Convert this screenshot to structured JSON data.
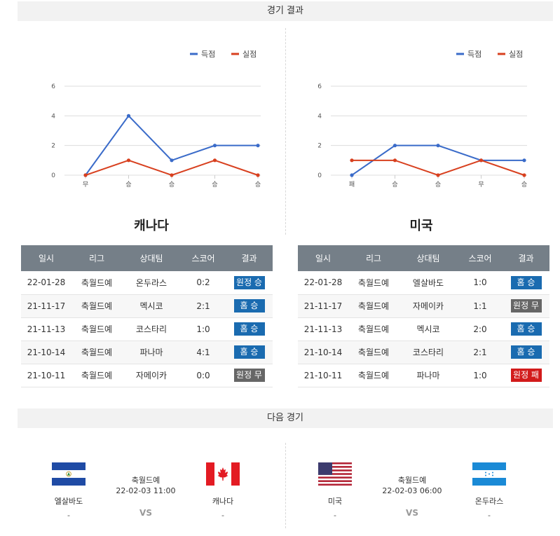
{
  "sections": {
    "results_title": "경기 결과",
    "next_title": "다음 경기"
  },
  "colors": {
    "goals": "#3a6bc9",
    "conceded": "#d8401f",
    "win": "#1a6bb0",
    "draw": "#666666",
    "loss": "#d21b1b",
    "header_bg": "#757f88"
  },
  "legend": {
    "goals": "득점",
    "conceded": "실점"
  },
  "chart_data": [
    {
      "type": "line",
      "categories": [
        "무",
        "승",
        "승",
        "승",
        "승"
      ],
      "series": [
        {
          "name": "득점",
          "values": [
            0,
            4,
            1,
            2,
            2
          ]
        },
        {
          "name": "실점",
          "values": [
            0,
            1,
            0,
            1,
            0
          ]
        }
      ],
      "yticks": [
        0,
        2,
        4,
        6
      ],
      "ylim": [
        0,
        6
      ],
      "grid": true,
      "legend_position": "top-right"
    },
    {
      "type": "line",
      "categories": [
        "패",
        "승",
        "승",
        "무",
        "승"
      ],
      "series": [
        {
          "name": "득점",
          "values": [
            0,
            2,
            2,
            1,
            1
          ]
        },
        {
          "name": "실점",
          "values": [
            1,
            1,
            0,
            1,
            0
          ]
        }
      ],
      "yticks": [
        0,
        2,
        4,
        6
      ],
      "ylim": [
        0,
        6
      ],
      "grid": true,
      "legend_position": "top-right"
    }
  ],
  "teams": {
    "canada": {
      "name": "캐나다"
    },
    "usa": {
      "name": "미국"
    }
  },
  "table_headers": [
    "일시",
    "리그",
    "상대팀",
    "스코어",
    "결과"
  ],
  "canada_results": [
    {
      "date": "22-01-28",
      "league": "축월드예",
      "opponent": "온두라스",
      "score": "0:2",
      "result": "원정 승",
      "type": "win"
    },
    {
      "date": "21-11-17",
      "league": "축월드예",
      "opponent": "멕시코",
      "score": "2:1",
      "result": "홈 승",
      "type": "win"
    },
    {
      "date": "21-11-13",
      "league": "축월드예",
      "opponent": "코스타리",
      "score": "1:0",
      "result": "홈 승",
      "type": "win"
    },
    {
      "date": "21-10-14",
      "league": "축월드예",
      "opponent": "파나마",
      "score": "4:1",
      "result": "홈 승",
      "type": "win"
    },
    {
      "date": "21-10-11",
      "league": "축월드예",
      "opponent": "자메이카",
      "score": "0:0",
      "result": "원정 무",
      "type": "draw"
    }
  ],
  "usa_results": [
    {
      "date": "22-01-28",
      "league": "축월드예",
      "opponent": "엘살바도",
      "score": "1:0",
      "result": "홈 승",
      "type": "win"
    },
    {
      "date": "21-11-17",
      "league": "축월드예",
      "opponent": "자메이카",
      "score": "1:1",
      "result": "원정 무",
      "type": "draw"
    },
    {
      "date": "21-11-13",
      "league": "축월드예",
      "opponent": "멕시코",
      "score": "2:0",
      "result": "홈 승",
      "type": "win"
    },
    {
      "date": "21-10-14",
      "league": "축월드예",
      "opponent": "코스타리",
      "score": "2:1",
      "result": "홈 승",
      "type": "win"
    },
    {
      "date": "21-10-11",
      "league": "축월드예",
      "opponent": "파나마",
      "score": "1:0",
      "result": "원정 패",
      "type": "loss"
    }
  ],
  "next_matches": [
    {
      "home": "엘살바도",
      "home_score": "-",
      "league": "축월드예",
      "datetime": "22-02-03 11:00",
      "vs": "VS",
      "away": "캐나다",
      "away_score": "-"
    },
    {
      "home": "미국",
      "home_score": "-",
      "league": "축월드예",
      "datetime": "22-02-03 06:00",
      "vs": "VS",
      "away": "온두라스",
      "away_score": "-"
    }
  ],
  "icons": {
    "flag_el_salvador": "el-salvador-flag-icon",
    "flag_canada": "canada-flag-icon",
    "flag_usa": "usa-flag-icon",
    "flag_honduras": "honduras-flag-icon"
  }
}
